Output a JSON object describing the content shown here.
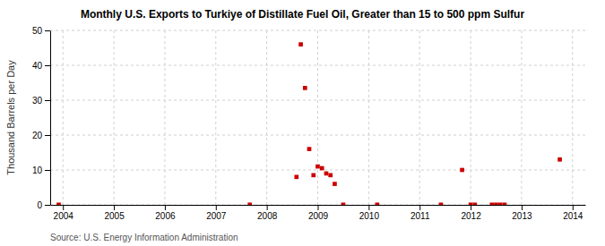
{
  "chart_data": {
    "type": "scatter",
    "title": "Monthly U.S. Exports to Turkiye of Distillate Fuel Oil, Greater than 15 to 500 ppm Sulfur",
    "y_label": "Thousand Barrels per Day",
    "annotation": "Source: U.S. Energy Information Administration",
    "color": "#cc0000",
    "marker": "square",
    "grid": true,
    "xlim": [
      2003.75,
      2014.25
    ],
    "ylim": [
      0,
      50
    ],
    "xticks": [
      2004,
      2005,
      2006,
      2007,
      2008,
      2009,
      2010,
      2011,
      2012,
      2013,
      2014
    ],
    "yticks": [
      0,
      10,
      20,
      30,
      40,
      50
    ],
    "x": [
      2003.917,
      2007.667,
      2008.583,
      2008.667,
      2008.75,
      2008.833,
      2008.917,
      2009.0,
      2009.083,
      2009.167,
      2009.25,
      2009.333,
      2009.5,
      2010.167,
      2011.417,
      2011.833,
      2012.0,
      2012.083,
      2012.417,
      2012.5,
      2012.583,
      2012.667,
      2013.75
    ],
    "values": [
      0.05,
      0.05,
      8.0,
      46.0,
      33.5,
      16.0,
      8.5,
      11.0,
      10.5,
      9.0,
      8.5,
      6.0,
      0.05,
      0.05,
      0.05,
      10.0,
      0.05,
      0.05,
      0.05,
      0.05,
      0.05,
      0.05,
      13.0
    ]
  }
}
